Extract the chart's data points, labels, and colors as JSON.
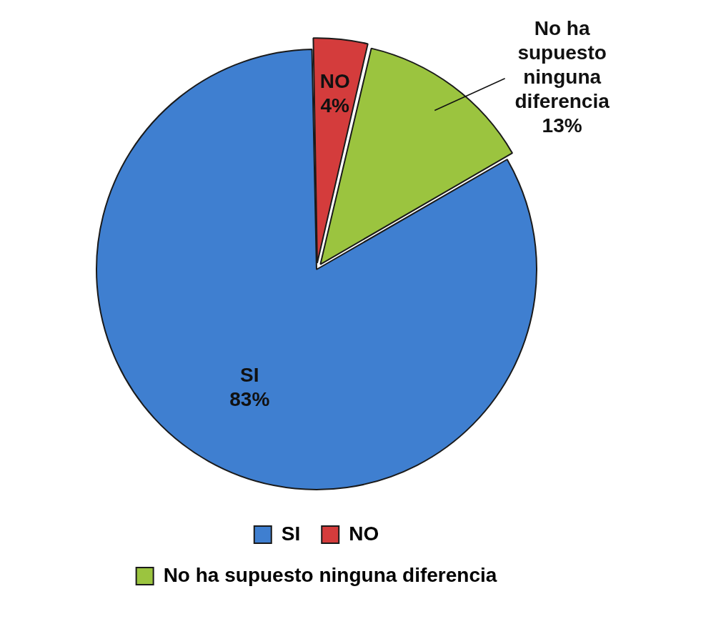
{
  "chart_data": {
    "type": "pie",
    "categories": [
      "SI",
      "NO",
      "No ha supuesto ninguna diferencia"
    ],
    "values": [
      83,
      4,
      13
    ],
    "value_labels": [
      "83%",
      "4%",
      "13%"
    ],
    "colors": [
      "#3f7fd0",
      "#d43c3c",
      "#9bc43f"
    ],
    "legend": "bottom"
  }
}
